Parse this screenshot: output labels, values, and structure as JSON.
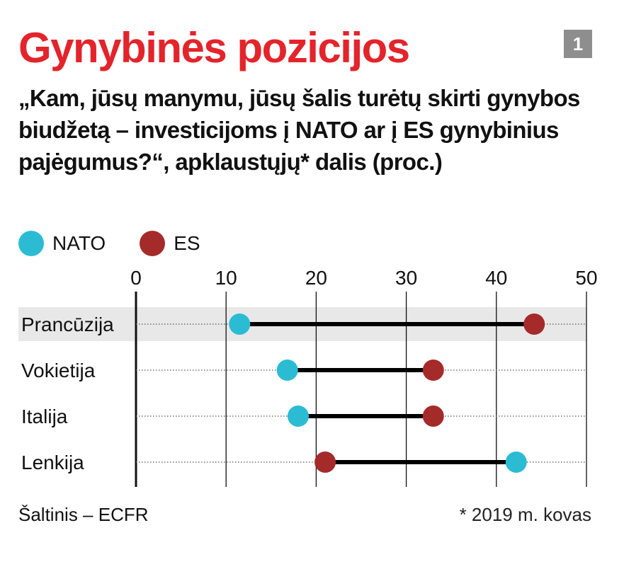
{
  "header": {
    "title": "Gynybinės pozicijos",
    "badge": "1",
    "subtitle": "„Kam, jūsų manymu, jūsų šalis turėtų skirti gynybos biudžetą – investicijoms į NATO ar į ES gynybinius pajėgumus?“, apklaustųjų* dalis (proc.)"
  },
  "legend": [
    {
      "name": "NATO",
      "color": "#2bbcd4"
    },
    {
      "name": "ES",
      "color": "#a52a2a"
    }
  ],
  "chart_data": {
    "type": "dumbbell",
    "title": "Gynybinės pozicijos",
    "xlim": [
      0,
      50
    ],
    "xticks": [
      0,
      10,
      20,
      30,
      40,
      50
    ],
    "grid": true,
    "legend_position": "top-left",
    "categories": [
      "Prancūzija",
      "Vokietija",
      "Italija",
      "Lenkija"
    ],
    "highlighted_category": "Prancūzija",
    "series": [
      {
        "name": "NATO",
        "color": "#2bbcd4",
        "values": [
          11.5,
          16.8,
          18,
          42.2
        ]
      },
      {
        "name": "ES",
        "color": "#a52a2a",
        "values": [
          44.2,
          33,
          33,
          21
        ]
      }
    ]
  },
  "footer": {
    "source": "Šaltinis – ECFR",
    "note": "* 2019 m. kovas"
  }
}
